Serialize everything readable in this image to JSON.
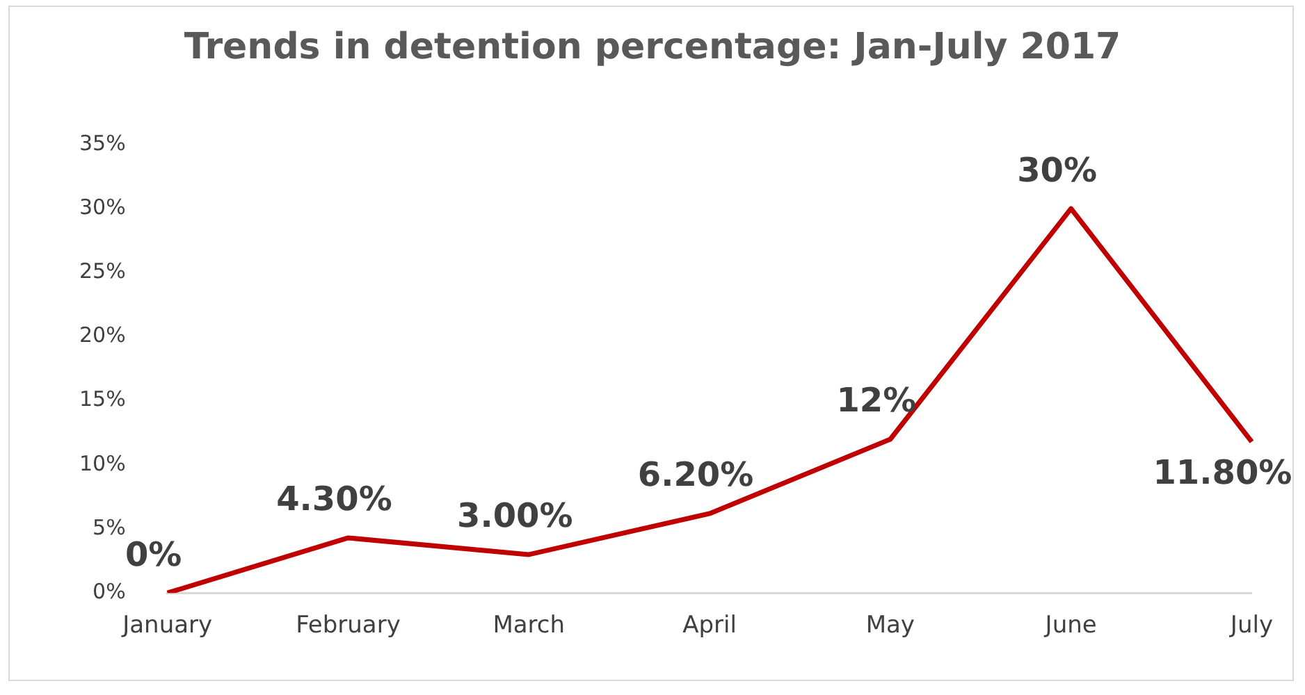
{
  "chart_data": {
    "type": "line",
    "title": "Trends in detention percentage: Jan-July 2017",
    "categories": [
      "January",
      "February",
      "March",
      "April",
      "May",
      "June",
      "July"
    ],
    "series": [
      {
        "color": "#c00000",
        "values": [
          0,
          4.3,
          3.0,
          6.2,
          12,
          30,
          11.8
        ],
        "value_labels": [
          "0%",
          "4.30%",
          "3.00%",
          "6.20%",
          "12%",
          "30%",
          "11.80%"
        ]
      }
    ],
    "ylim": [
      0,
      35
    ],
    "yticks": [
      {
        "value": 0,
        "label": "0%"
      },
      {
        "value": 5,
        "label": "5%"
      },
      {
        "value": 10,
        "label": "10%"
      },
      {
        "value": 15,
        "label": "15%"
      },
      {
        "value": 20,
        "label": "20%"
      },
      {
        "value": 25,
        "label": "25%"
      },
      {
        "value": 30,
        "label": "30%"
      },
      {
        "value": 35,
        "label": "35%"
      }
    ],
    "grid": false,
    "legend": false,
    "marker": "none",
    "line_style": "solid"
  }
}
